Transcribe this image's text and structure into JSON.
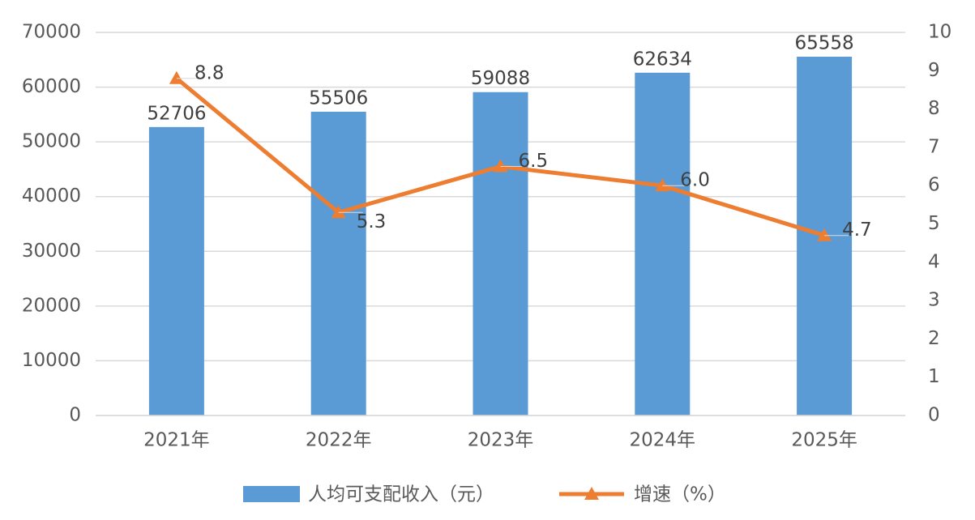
{
  "chart_data": {
    "type": "combo",
    "categories": [
      "2021年",
      "2022年",
      "2023年",
      "2024年",
      "2025年"
    ],
    "series": [
      {
        "name": "人均可支配收入（元）",
        "type": "bar",
        "color": "#5b9bd5",
        "values": [
          52706,
          55506,
          59088,
          62634,
          65558
        ]
      },
      {
        "name": "增速（%）",
        "type": "line",
        "axis": "y2",
        "color": "#ed7d31",
        "values": [
          8.8,
          5.3,
          6.5,
          6.0,
          4.7
        ],
        "value_labels": [
          "8.8",
          "5.3",
          "6.5",
          "6.0",
          "4.7"
        ]
      }
    ],
    "ylim": [
      0,
      70000
    ],
    "yticks": [
      0,
      10000,
      20000,
      30000,
      40000,
      50000,
      60000,
      70000
    ],
    "y2lim": [
      0,
      10
    ],
    "y2ticks": [
      0,
      1,
      2,
      3,
      4,
      5,
      6,
      7,
      8,
      9,
      10
    ],
    "grid": true,
    "legend": "bottom"
  }
}
